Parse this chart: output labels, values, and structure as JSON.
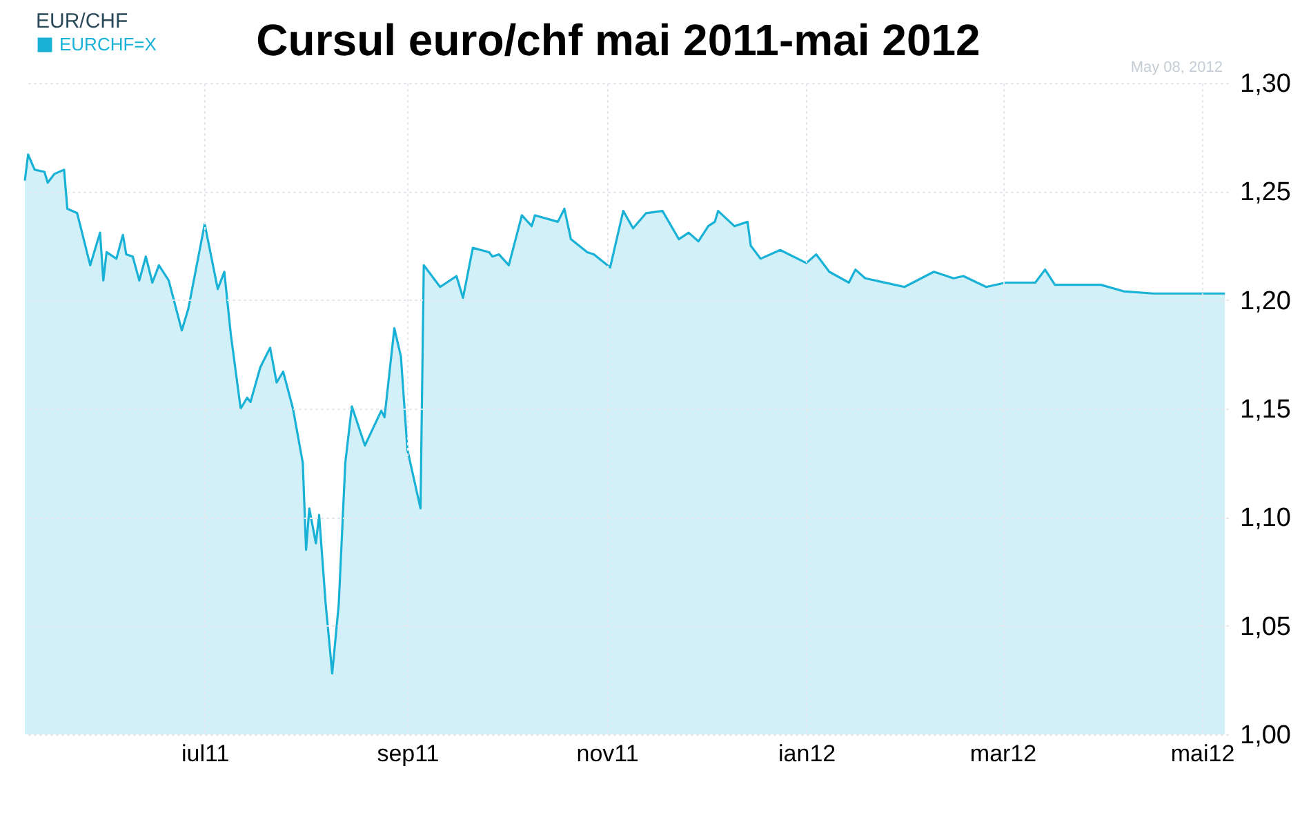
{
  "chart_data": {
    "type": "area",
    "title": "Cursul euro/chf mai 2011-mai 2012",
    "legend_title": "EUR/CHF",
    "legend": "top left",
    "grid": true,
    "annotations": [
      "May 08, 2012"
    ],
    "x": [
      "2011-05-07",
      "2011-05-08",
      "2011-05-10",
      "2011-05-13",
      "2011-05-14",
      "2011-05-16",
      "2011-05-19",
      "2011-05-20",
      "2011-05-23",
      "2011-05-27",
      "2011-05-30",
      "2011-05-31",
      "2011-06-01",
      "2011-06-04",
      "2011-06-06",
      "2011-06-07",
      "2011-06-09",
      "2011-06-11",
      "2011-06-13",
      "2011-06-15",
      "2011-06-17",
      "2011-06-20",
      "2011-06-24",
      "2011-06-26",
      "2011-07-01",
      "2011-07-05",
      "2011-07-07",
      "2011-07-09",
      "2011-07-12",
      "2011-07-14",
      "2011-07-15",
      "2011-07-18",
      "2011-07-21",
      "2011-07-23",
      "2011-07-25",
      "2011-07-28",
      "2011-07-31",
      "2011-08-01",
      "2011-08-02",
      "2011-08-04",
      "2011-08-05",
      "2011-08-07",
      "2011-08-09",
      "2011-08-11",
      "2011-08-13",
      "2011-08-15",
      "2011-08-19",
      "2011-08-24",
      "2011-08-25",
      "2011-08-28",
      "2011-08-30",
      "2011-09-01",
      "2011-09-05",
      "2011-09-06",
      "2011-09-11",
      "2011-09-16",
      "2011-09-18",
      "2011-09-21",
      "2011-09-26",
      "2011-09-27",
      "2011-09-29",
      "2011-10-02",
      "2011-10-06",
      "2011-10-09",
      "2011-10-10",
      "2011-10-17",
      "2011-10-19",
      "2011-10-21",
      "2011-10-26",
      "2011-10-28",
      "2011-11-02",
      "2011-11-06",
      "2011-11-09",
      "2011-11-13",
      "2011-11-18",
      "2011-11-23",
      "2011-11-26",
      "2011-11-29",
      "2011-12-02",
      "2011-12-04",
      "2011-12-05",
      "2011-12-10",
      "2011-12-14",
      "2011-12-15",
      "2011-12-18",
      "2011-12-24",
      "2012-01-01",
      "2012-01-04",
      "2012-01-08",
      "2012-01-14",
      "2012-01-16",
      "2012-01-19",
      "2012-01-31",
      "2012-02-09",
      "2012-02-15",
      "2012-02-18",
      "2012-02-25",
      "2012-03-02",
      "2012-03-11",
      "2012-03-14",
      "2012-03-17",
      "2012-03-31",
      "2012-04-07",
      "2012-04-16",
      "2012-04-21",
      "2012-05-08"
    ],
    "series": [
      {
        "name": "EURCHF=X",
        "color": "#19b2d6",
        "values": [
          1.255,
          1.267,
          1.26,
          1.259,
          1.254,
          1.258,
          1.26,
          1.242,
          1.24,
          1.216,
          1.231,
          1.209,
          1.222,
          1.219,
          1.23,
          1.221,
          1.22,
          1.209,
          1.22,
          1.208,
          1.216,
          1.209,
          1.186,
          1.196,
          1.235,
          1.205,
          1.213,
          1.184,
          1.15,
          1.155,
          1.153,
          1.169,
          1.178,
          1.162,
          1.167,
          1.15,
          1.125,
          1.085,
          1.104,
          1.088,
          1.101,
          1.06,
          1.028,
          1.06,
          1.125,
          1.151,
          1.133,
          1.149,
          1.146,
          1.187,
          1.174,
          1.131,
          1.104,
          1.216,
          1.206,
          1.211,
          1.201,
          1.224,
          1.222,
          1.22,
          1.221,
          1.216,
          1.239,
          1.234,
          1.239,
          1.236,
          1.242,
          1.228,
          1.222,
          1.221,
          1.215,
          1.241,
          1.233,
          1.24,
          1.241,
          1.228,
          1.231,
          1.227,
          1.234,
          1.236,
          1.241,
          1.234,
          1.236,
          1.225,
          1.219,
          1.223,
          1.217,
          1.221,
          1.213,
          1.208,
          1.214,
          1.21,
          1.206,
          1.213,
          1.21,
          1.211,
          1.206,
          1.208,
          1.208,
          1.214,
          1.207,
          1.207,
          1.204,
          1.203,
          1.203,
          1.203
        ]
      }
    ],
    "xlim": [
      "2011-05-07",
      "2012-05-09"
    ],
    "xticks": [
      {
        "value": "2011-07-01",
        "label": "iul11"
      },
      {
        "value": "2011-09-01",
        "label": "sep11"
      },
      {
        "value": "2011-11-01",
        "label": "nov11"
      },
      {
        "value": "2012-01-01",
        "label": "ian12"
      },
      {
        "value": "2012-03-01",
        "label": "mar12"
      },
      {
        "value": "2012-05-01",
        "label": "mai12"
      }
    ],
    "ylim": [
      1.0,
      1.3
    ],
    "yticks": [
      {
        "value": 1.0,
        "label": "1,00"
      },
      {
        "value": 1.05,
        "label": "1,05"
      },
      {
        "value": 1.1,
        "label": "1,10"
      },
      {
        "value": 1.15,
        "label": "1,15"
      },
      {
        "value": 1.2,
        "label": "1,20"
      },
      {
        "value": 1.25,
        "label": "1,25"
      },
      {
        "value": 1.3,
        "label": "1,30"
      }
    ]
  }
}
